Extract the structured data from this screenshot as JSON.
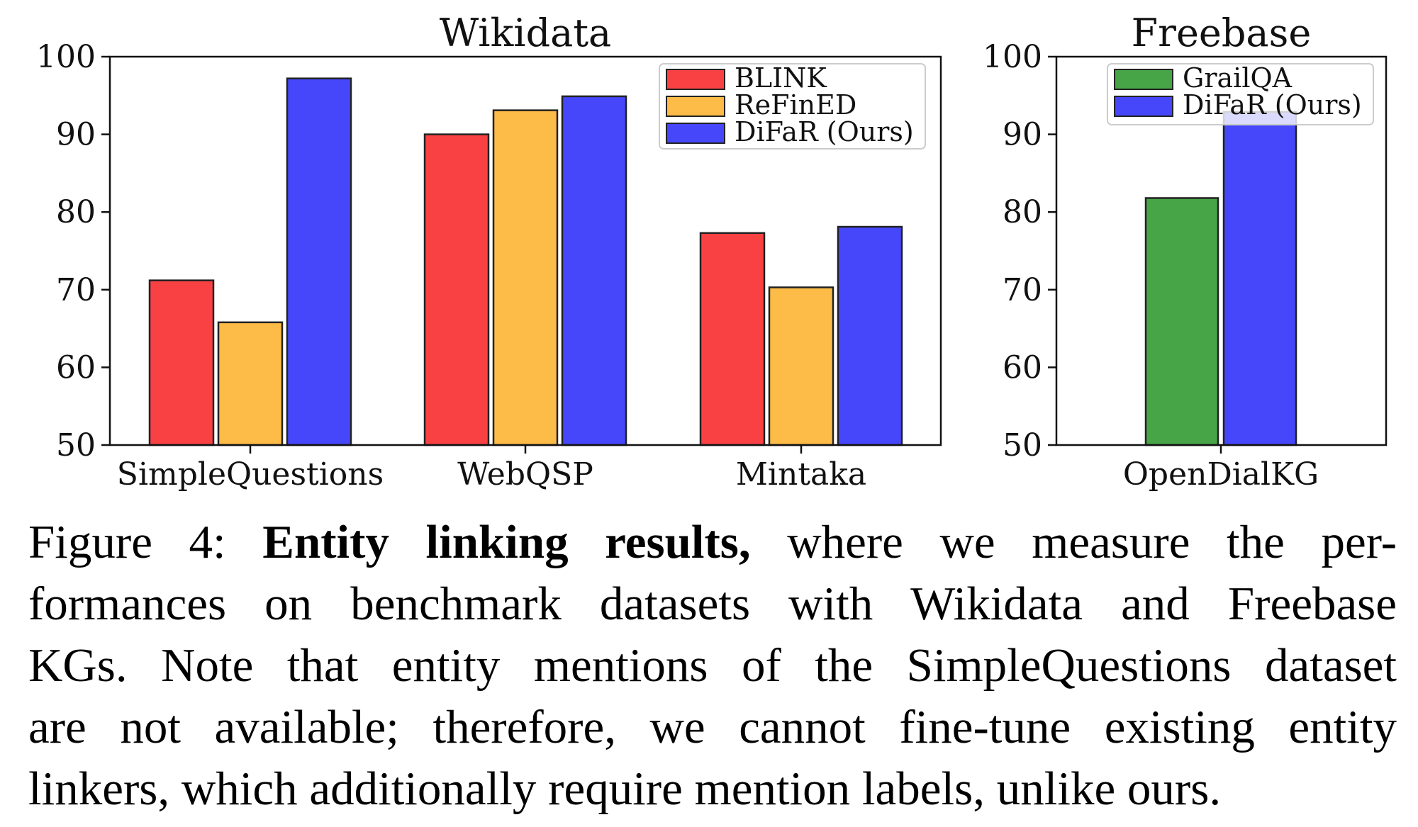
{
  "chart_data": [
    {
      "type": "bar",
      "title": "Wikidata",
      "categories": [
        "SimpleQuestions",
        "WebQSP",
        "Mintaka"
      ],
      "series": [
        {
          "name": "BLINK",
          "color": "#f94144",
          "values": [
            71.2,
            90.0,
            77.3
          ]
        },
        {
          "name": "ReFinED",
          "color": "#fdbb47",
          "values": [
            65.8,
            93.1,
            70.3
          ]
        },
        {
          "name": "DiFaR (Ours)",
          "color": "#4647fb",
          "values": [
            97.2,
            94.9,
            78.1
          ]
        }
      ],
      "ylim": [
        50,
        100
      ],
      "yticks": [
        50,
        60,
        70,
        80,
        90,
        100
      ],
      "legend": "top-right"
    },
    {
      "type": "bar",
      "title": "Freebase",
      "categories": [
        "OpenDialKG"
      ],
      "series": [
        {
          "name": "GrailQA",
          "color": "#47a447",
          "values": [
            81.8
          ]
        },
        {
          "name": "DiFaR (Ours)",
          "color": "#4647fb",
          "values": [
            92.9
          ]
        }
      ],
      "ylim": [
        50,
        100
      ],
      "yticks": [
        50,
        60,
        70,
        80,
        90,
        100
      ],
      "legend": "top-right"
    }
  ],
  "caption": {
    "label": "Figure 4:",
    "bold": "Entity linking results,",
    "line1_rest": "where we measure the per-",
    "line2": "formances on benchmark datasets with Wikidata and Freebase",
    "line3": "KGs. Note that entity mentions of the SimpleQuestions dataset",
    "line4": "are not available; therefore, we cannot fine-tune existing entity",
    "line5": "linkers, which additionally require mention labels, unlike ours."
  }
}
